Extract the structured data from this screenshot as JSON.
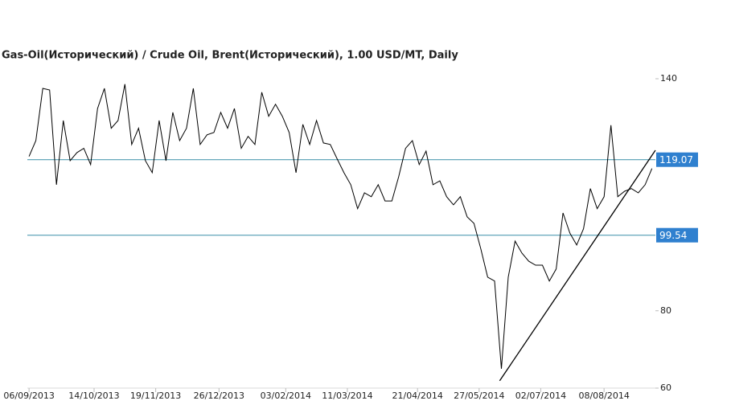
{
  "chart_data": {
    "type": "line",
    "title": "Gas-Oil(Исторический) / Crude Oil, Brent(Исторический), 1.00 USD/MT, Daily",
    "x": [
      "2013-09-06",
      "2013-09-10",
      "2013-09-14",
      "2013-09-18",
      "2013-09-22",
      "2013-09-26",
      "2013-09-30",
      "2013-10-04",
      "2013-10-08",
      "2013-10-12",
      "2013-10-16",
      "2013-10-20",
      "2013-10-24",
      "2013-10-28",
      "2013-11-01",
      "2013-11-05",
      "2013-11-09",
      "2013-11-13",
      "2013-11-17",
      "2013-11-21",
      "2013-11-25",
      "2013-11-29",
      "2013-12-03",
      "2013-12-07",
      "2013-12-11",
      "2013-12-15",
      "2013-12-19",
      "2013-12-23",
      "2013-12-27",
      "2013-12-31",
      "2014-01-04",
      "2014-01-08",
      "2014-01-12",
      "2014-01-16",
      "2014-01-20",
      "2014-01-24",
      "2014-01-28",
      "2014-02-01",
      "2014-02-05",
      "2014-02-09",
      "2014-02-13",
      "2014-02-17",
      "2014-02-21",
      "2014-02-25",
      "2014-03-01",
      "2014-03-05",
      "2014-03-09",
      "2014-03-13",
      "2014-03-17",
      "2014-03-21",
      "2014-03-25",
      "2014-03-29",
      "2014-04-02",
      "2014-04-06",
      "2014-04-10",
      "2014-04-14",
      "2014-04-18",
      "2014-04-22",
      "2014-04-26",
      "2014-04-30",
      "2014-05-04",
      "2014-05-08",
      "2014-05-12",
      "2014-05-16",
      "2014-05-20",
      "2014-05-24",
      "2014-05-28",
      "2014-06-01",
      "2014-06-05",
      "2014-06-09",
      "2014-06-13",
      "2014-06-17",
      "2014-06-21",
      "2014-06-25",
      "2014-06-29",
      "2014-07-03",
      "2014-07-07",
      "2014-07-11",
      "2014-07-15",
      "2014-07-19",
      "2014-07-23",
      "2014-07-27",
      "2014-07-31",
      "2014-08-04",
      "2014-08-08",
      "2014-08-12",
      "2014-08-16",
      "2014-08-20",
      "2014-08-24",
      "2014-08-28",
      "2014-09-01",
      "2014-09-05"
    ],
    "series": [
      {
        "color": "#000000",
        "values": [
          119.9,
          124.0,
          137.5,
          137.1,
          112.6,
          129.2,
          118.8,
          120.9,
          122.0,
          117.8,
          132.3,
          137.5,
          127.2,
          129.2,
          138.6,
          123.0,
          127.2,
          118.8,
          115.7,
          129.2,
          118.8,
          131.3,
          124.0,
          127.2,
          137.5,
          123.0,
          125.5,
          126.1,
          131.3,
          127.2,
          132.3,
          122.0,
          125.1,
          123.0,
          136.5,
          130.3,
          133.4,
          130.3,
          126.1,
          115.7,
          128.2,
          123.0,
          129.2,
          123.4,
          123.0,
          119.3,
          115.7,
          112.6,
          106.4,
          110.5,
          109.5,
          112.6,
          108.4,
          108.4,
          114.7,
          122.0,
          124.0,
          117.8,
          121.3,
          112.6,
          113.6,
          109.5,
          107.4,
          109.5,
          104.3,
          102.6,
          96.0,
          88.7,
          87.7,
          65.0,
          88.7,
          98.0,
          94.9,
          92.8,
          91.8,
          91.8,
          87.7,
          90.8,
          105.3,
          100.1,
          97.0,
          101.2,
          111.6,
          106.4,
          109.5,
          128.0,
          109.5,
          110.9,
          111.6,
          110.5,
          112.6,
          116.8
        ]
      }
    ],
    "levels": [
      {
        "value": 119.07,
        "color": "#3a8fa8",
        "label_color": "#2f80cf"
      },
      {
        "value": 99.54,
        "color": "#3a8fa8",
        "label_color": "#2f80cf"
      }
    ],
    "trendline": {
      "x": [
        "2014-06-08",
        "2014-09-07"
      ],
      "values": [
        61.9,
        121.5
      ],
      "color": "#000000"
    },
    "xlim": [
      "2013-09-05",
      "2014-09-07"
    ],
    "xticks": [
      {
        "value": "2013-09-06",
        "label": "06/09/2013"
      },
      {
        "value": "2013-10-14",
        "label": "14/10/2013"
      },
      {
        "value": "2013-11-19",
        "label": "19/11/2013"
      },
      {
        "value": "2013-12-26",
        "label": "26/12/2013"
      },
      {
        "value": "2014-02-03",
        "label": "03/02/2014"
      },
      {
        "value": "2014-03-11",
        "label": "11/03/2014"
      },
      {
        "value": "2014-04-21",
        "label": "21/04/2014"
      },
      {
        "value": "2014-05-27",
        "label": "27/05/2014"
      },
      {
        "value": "2014-07-02",
        "label": "02/07/2014"
      },
      {
        "value": "2014-08-08",
        "label": "08/08/2014"
      }
    ],
    "ylim": [
      60,
      140
    ],
    "yticks": [
      60,
      80,
      140
    ]
  }
}
